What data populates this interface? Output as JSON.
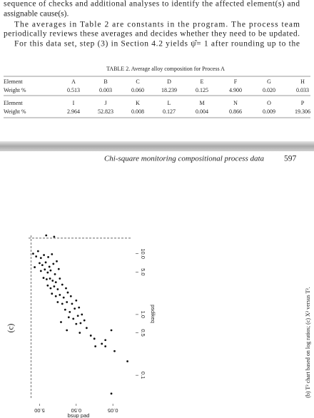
{
  "body": {
    "lines": [
      "sequence of checks and additional analyses to identify the affected element(s) and",
      "assignable cause(s).",
      "The averages in Table 2 are constants in the program. The process team",
      "periodically reviews these averages and decides whether they need to be updated.",
      "For this data set, step (3) in Section 4.2 yields ψ̂= 1 after rounding up to the"
    ]
  },
  "table": {
    "caption": "TABLE 2. Average alloy composition for Process A",
    "blocks": [
      {
        "header": [
          "Element",
          "A",
          "B",
          "C",
          "D",
          "E",
          "F",
          "G",
          "H"
        ],
        "row": [
          "Weight %",
          "0.513",
          "0.003",
          "0.060",
          "18.239",
          "0.125",
          "4.900",
          "0.020",
          "0.033"
        ]
      },
      {
        "header": [
          "Element",
          "I",
          "J",
          "K",
          "L",
          "M",
          "N",
          "O",
          "P"
        ],
        "row": [
          "Weight %",
          "2.964",
          "52.823",
          "0.008",
          "0.127",
          "0.004",
          "0.866",
          "0.009",
          "19.306"
        ]
      }
    ]
  },
  "running_head": {
    "title": "Chi-square monitoring compositional process data",
    "page": "597"
  },
  "figure": {
    "panel_label": "(c)",
    "type": "scatter",
    "x_label": "bsup pad",
    "y_label": "psdikeq",
    "log": true,
    "xlim": [
      10,
      0.015
    ],
    "ylim": [
      0.035,
      20
    ],
    "xticks": [
      {
        "value": 5,
        "label": "5.00"
      },
      {
        "value": 0.5,
        "label": "0.50"
      },
      0.05
    ],
    "yticks": [
      0.1,
      0.5,
      {
        "value": 1,
        "label": "1.0"
      },
      {
        "value": 5,
        "label": "5.0"
      },
      {
        "value": 10,
        "label": "10.0"
      }
    ],
    "limits": {
      "x": 8.5,
      "y": 18
    },
    "x": [
      3.3,
      2.0,
      5.5,
      6.2,
      4.6,
      3.8,
      2.9,
      2.3,
      5.0,
      4.2,
      3.4,
      2.7,
      2.1,
      1.7,
      4.6,
      3.6,
      3.0,
      2.5,
      1.9,
      1.5,
      3.9,
      3.2,
      2.6,
      2.2,
      1.8,
      1.4,
      3.0,
      2.5,
      2.0,
      1.6,
      1.2,
      0.95,
      2.3,
      1.8,
      1.4,
      1.1,
      0.85,
      0.7,
      1.6,
      1.2,
      0.9,
      0.65,
      0.5,
      1.0,
      0.75,
      0.55,
      0.42,
      0.8,
      0.6,
      0.45,
      0.35,
      0.5,
      0.38,
      0.3,
      0.26,
      0.9,
      0.4,
      0.2,
      0.16,
      0.1,
      0.08,
      0.055,
      0.08,
      0.045,
      0.02,
      0.055,
      6.8,
      7.5,
      0.15,
      1.3
    ],
    "y": [
      20,
      19,
      11,
      9,
      8.5,
      9.5,
      8.8,
      9.8,
      7,
      6.5,
      7.2,
      6.1,
      6.8,
      7.5,
      5.2,
      5.5,
      4.9,
      5.3,
      4.6,
      5.6,
      4.0,
      3.8,
      3.9,
      3.6,
      3.4,
      3.9,
      3.0,
      2.7,
      2.9,
      2.6,
      3.1,
      2.7,
      2.2,
      2.0,
      2.1,
      1.9,
      2.3,
      2.0,
      1.6,
      1.5,
      1.6,
      1.5,
      1.7,
      1.2,
      1.1,
      1.25,
      1.3,
      0.9,
      0.85,
      0.95,
      1.0,
      0.7,
      0.72,
      0.8,
      0.6,
      0.55,
      0.5,
      0.45,
      0.4,
      0.33,
      0.3,
      0.55,
      0.38,
      0.25,
      0.17,
      0.05,
      6.0,
      10,
      0.3,
      0.75
    ]
  },
  "caption": "(b) T² chart based on log ratios; (c) X² versus T²."
}
